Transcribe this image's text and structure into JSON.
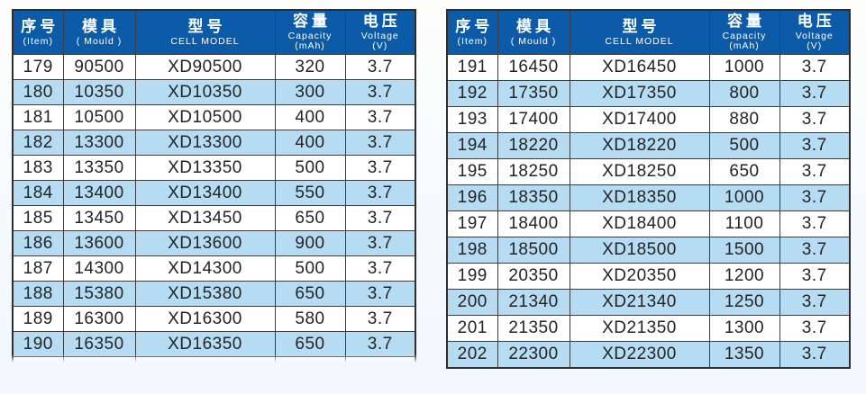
{
  "document": {
    "type": "battery-cell-specification-table",
    "language": "zh-en"
  },
  "colors": {
    "header_bg": "#0b5ba8",
    "header_text": "#ffffff",
    "row_bg": "#ffffff",
    "row_alt_bg": "#b5dcf3",
    "grid_border": "#3d3d3d",
    "body_text": "#242424"
  },
  "columns": [
    {
      "zh": "序号",
      "sub": "(Item)"
    },
    {
      "zh": "模具",
      "sub": "( Mould )"
    },
    {
      "zh": "型号",
      "sub": "CELL MODEL"
    },
    {
      "zh": "容量",
      "sub": "Capacity\n(mAh)"
    },
    {
      "zh": "电压",
      "sub": "Voltage\n(V)"
    }
  ],
  "tables": [
    {
      "name": "left",
      "partial_next_row": true,
      "rows": [
        {
          "item": "179",
          "mould": "90500",
          "model": "XD90500",
          "capacity": "320",
          "voltage": "3.7"
        },
        {
          "item": "180",
          "mould": "10350",
          "model": "XD10350",
          "capacity": "300",
          "voltage": "3.7"
        },
        {
          "item": "181",
          "mould": "10500",
          "model": "XD10500",
          "capacity": "400",
          "voltage": "3.7"
        },
        {
          "item": "182",
          "mould": "13300",
          "model": "XD13300",
          "capacity": "400",
          "voltage": "3.7"
        },
        {
          "item": "183",
          "mould": "13350",
          "model": "XD13350",
          "capacity": "500",
          "voltage": "3.7"
        },
        {
          "item": "184",
          "mould": "13400",
          "model": "XD13400",
          "capacity": "550",
          "voltage": "3.7"
        },
        {
          "item": "185",
          "mould": "13450",
          "model": "XD13450",
          "capacity": "650",
          "voltage": "3.7"
        },
        {
          "item": "186",
          "mould": "13600",
          "model": "XD13600",
          "capacity": "900",
          "voltage": "3.7"
        },
        {
          "item": "187",
          "mould": "14300",
          "model": "XD14300",
          "capacity": "500",
          "voltage": "3.7"
        },
        {
          "item": "188",
          "mould": "15380",
          "model": "XD15380",
          "capacity": "650",
          "voltage": "3.7"
        },
        {
          "item": "189",
          "mould": "16300",
          "model": "XD16300",
          "capacity": "580",
          "voltage": "3.7"
        },
        {
          "item": "190",
          "mould": "16350",
          "model": "XD16350",
          "capacity": "650",
          "voltage": "3.7"
        }
      ]
    },
    {
      "name": "right",
      "partial_next_row": false,
      "rows": [
        {
          "item": "191",
          "mould": "16450",
          "model": "XD16450",
          "capacity": "1000",
          "voltage": "3.7"
        },
        {
          "item": "192",
          "mould": "17350",
          "model": "XD17350",
          "capacity": "800",
          "voltage": "3.7"
        },
        {
          "item": "193",
          "mould": "17400",
          "model": "XD17400",
          "capacity": "880",
          "voltage": "3.7"
        },
        {
          "item": "194",
          "mould": "18220",
          "model": "XD18220",
          "capacity": "500",
          "voltage": "3.7"
        },
        {
          "item": "195",
          "mould": "18250",
          "model": "XD18250",
          "capacity": "650",
          "voltage": "3.7"
        },
        {
          "item": "196",
          "mould": "18350",
          "model": "XD18350",
          "capacity": "1000",
          "voltage": "3.7"
        },
        {
          "item": "197",
          "mould": "18400",
          "model": "XD18400",
          "capacity": "1100",
          "voltage": "3.7"
        },
        {
          "item": "198",
          "mould": "18500",
          "model": "XD18500",
          "capacity": "1500",
          "voltage": "3.7"
        },
        {
          "item": "199",
          "mould": "20350",
          "model": "XD20350",
          "capacity": "1200",
          "voltage": "3.7"
        },
        {
          "item": "200",
          "mould": "21340",
          "model": "XD21340",
          "capacity": "1250",
          "voltage": "3.7"
        },
        {
          "item": "201",
          "mould": "21350",
          "model": "XD21350",
          "capacity": "1300",
          "voltage": "3.7"
        },
        {
          "item": "202",
          "mould": "22300",
          "model": "XD22300",
          "capacity": "1350",
          "voltage": "3.7"
        }
      ]
    }
  ]
}
